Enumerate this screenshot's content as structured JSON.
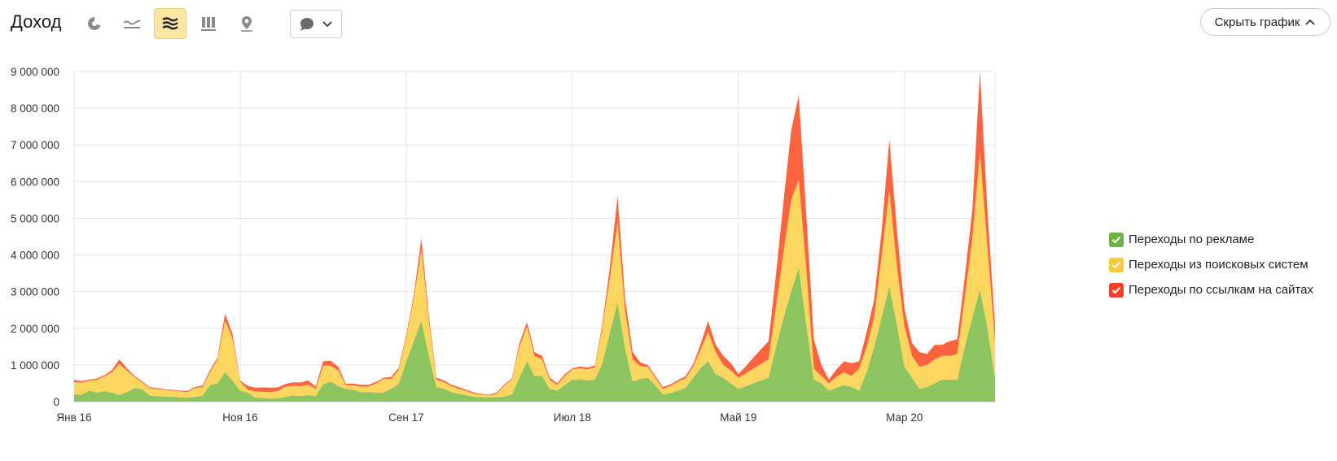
{
  "header": {
    "title": "Доход",
    "hide_chart_label": "Скрыть график",
    "tools": [
      {
        "name": "pie-chart-icon",
        "active": false
      },
      {
        "name": "line-chart-icon",
        "active": false
      },
      {
        "name": "stacked-area-icon",
        "active": true
      },
      {
        "name": "bar-chart-icon",
        "active": false
      },
      {
        "name": "map-pin-icon",
        "active": false
      }
    ],
    "comment_icon": "comment-bubble-icon"
  },
  "colors": {
    "ads": "#8cc460",
    "search": "#fcd65f",
    "links": "#fb643f",
    "ads_check": "#6cb33f",
    "search_check": "#f7c93b",
    "links_check": "#f5402a"
  },
  "chart_data": {
    "type": "area",
    "stacked": true,
    "ylim": [
      0,
      9000000
    ],
    "yticks": [
      {
        "value": 0,
        "label": "0"
      },
      {
        "value": 1000000,
        "label": "1 000 000"
      },
      {
        "value": 2000000,
        "label": "2 000 000"
      },
      {
        "value": 3000000,
        "label": "3 000 000"
      },
      {
        "value": 4000000,
        "label": "4 000 000"
      },
      {
        "value": 5000000,
        "label": "5 000 000"
      },
      {
        "value": 6000000,
        "label": "6 000 000"
      },
      {
        "value": 7000000,
        "label": "7 000 000"
      },
      {
        "value": 8000000,
        "label": "8 000 000"
      },
      {
        "value": 9000000,
        "label": "9 000 000"
      }
    ],
    "xticks": [
      {
        "month_index": 0,
        "label": "Янв 16"
      },
      {
        "month_index": 22,
        "label": "Ноя 16"
      },
      {
        "month_index": 44,
        "label": "Сен 17"
      },
      {
        "month_index": 66,
        "label": "Июл 18"
      },
      {
        "month_index": 88,
        "label": "Май 19"
      },
      {
        "month_index": 110,
        "label": "Мар 20"
      }
    ],
    "grid": true,
    "legend_position": "right",
    "series": [
      {
        "name": "Переходы по рекламе",
        "color_key": "ads",
        "values": [
          200000,
          190000,
          300000,
          250000,
          280000,
          250000,
          180000,
          260000,
          370000,
          340000,
          170000,
          150000,
          140000,
          130000,
          120000,
          110000,
          130000,
          160000,
          450000,
          500000,
          800000,
          570000,
          300000,
          250000,
          110000,
          100000,
          80000,
          90000,
          130000,
          170000,
          150000,
          180000,
          150000,
          480000,
          550000,
          420000,
          350000,
          320000,
          260000,
          260000,
          240000,
          250000,
          350000,
          480000,
          1100000,
          1650000,
          2200000,
          1250000,
          400000,
          350000,
          260000,
          210000,
          170000,
          130000,
          120000,
          120000,
          120000,
          140000,
          200000,
          650000,
          1100000,
          700000,
          700000,
          350000,
          300000,
          450000,
          600000,
          610000,
          580000,
          600000,
          1050000,
          1900000,
          2700000,
          1450000,
          550000,
          620000,
          650000,
          450000,
          200000,
          230000,
          300000,
          380000,
          650000,
          920000,
          1100000,
          750000,
          650000,
          500000,
          350000,
          420000,
          500000,
          580000,
          650000,
          1500000,
          2300000,
          3000000,
          3650000,
          2100000,
          600000,
          500000,
          300000,
          380000,
          450000,
          400000,
          300000,
          800000,
          1500000,
          2300000,
          3150000,
          2100000,
          950000,
          650000,
          350000,
          400000,
          500000,
          600000,
          600000,
          600000,
          1500000,
          2300000,
          3050000,
          2000000,
          650000
        ]
      },
      {
        "name": "Переходы из поисковых систем",
        "color_key": "search",
        "values": [
          330000,
          330000,
          270000,
          340000,
          410000,
          550000,
          850000,
          590000,
          300000,
          190000,
          200000,
          190000,
          180000,
          170000,
          160000,
          150000,
          240000,
          240000,
          350000,
          650000,
          1400000,
          1150000,
          250000,
          80000,
          170000,
          170000,
          180000,
          200000,
          280000,
          260000,
          270000,
          280000,
          200000,
          500000,
          430000,
          430000,
          100000,
          120000,
          150000,
          150000,
          260000,
          370000,
          270000,
          380000,
          650000,
          1150000,
          1950000,
          950000,
          200000,
          180000,
          160000,
          140000,
          120000,
          90000,
          70000,
          50000,
          100000,
          300000,
          400000,
          850000,
          950000,
          550000,
          450000,
          250000,
          150000,
          250000,
          280000,
          300000,
          300000,
          330000,
          1000000,
          1500000,
          2200000,
          1000000,
          600000,
          350000,
          300000,
          200000,
          150000,
          200000,
          250000,
          250000,
          300000,
          500000,
          800000,
          600000,
          350000,
          350000,
          300000,
          350000,
          400000,
          450000,
          500000,
          1100000,
          1800000,
          2500000,
          2400000,
          1500000,
          300000,
          200000,
          200000,
          300000,
          350000,
          300000,
          600000,
          700000,
          800000,
          1700000,
          2600000,
          1600000,
          1100000,
          600000,
          600000,
          600000,
          650000,
          650000,
          650000,
          700000,
          1350000,
          2150000,
          3750000,
          2200000,
          1000000
        ]
      },
      {
        "name": "Переходы по ссылкам на сайтах",
        "color_key": "links",
        "values": [
          60000,
          40000,
          30000,
          40000,
          30000,
          60000,
          120000,
          60000,
          30000,
          30000,
          30000,
          30000,
          20000,
          20000,
          20000,
          30000,
          30000,
          40000,
          60000,
          50000,
          200000,
          120000,
          30000,
          100000,
          100000,
          120000,
          120000,
          100000,
          70000,
          100000,
          100000,
          120000,
          60000,
          120000,
          130000,
          100000,
          40000,
          50000,
          50000,
          50000,
          40000,
          30000,
          50000,
          60000,
          70000,
          100000,
          300000,
          150000,
          50000,
          50000,
          40000,
          40000,
          30000,
          30000,
          20000,
          20000,
          30000,
          30000,
          30000,
          100000,
          120000,
          100000,
          100000,
          60000,
          50000,
          50000,
          30000,
          50000,
          50000,
          50000,
          100000,
          300000,
          700000,
          350000,
          200000,
          100000,
          50000,
          50000,
          50000,
          40000,
          40000,
          60000,
          70000,
          150000,
          300000,
          200000,
          250000,
          200000,
          100000,
          200000,
          300000,
          400000,
          500000,
          900000,
          1400000,
          1900000,
          2300000,
          1500000,
          800000,
          300000,
          100000,
          200000,
          300000,
          350000,
          200000,
          400000,
          500000,
          700000,
          1400000,
          1000000,
          500000,
          350000,
          400000,
          300000,
          400000,
          300000,
          400000,
          400000,
          550000,
          800000,
          2200000,
          1000000,
          400000
        ]
      }
    ]
  }
}
